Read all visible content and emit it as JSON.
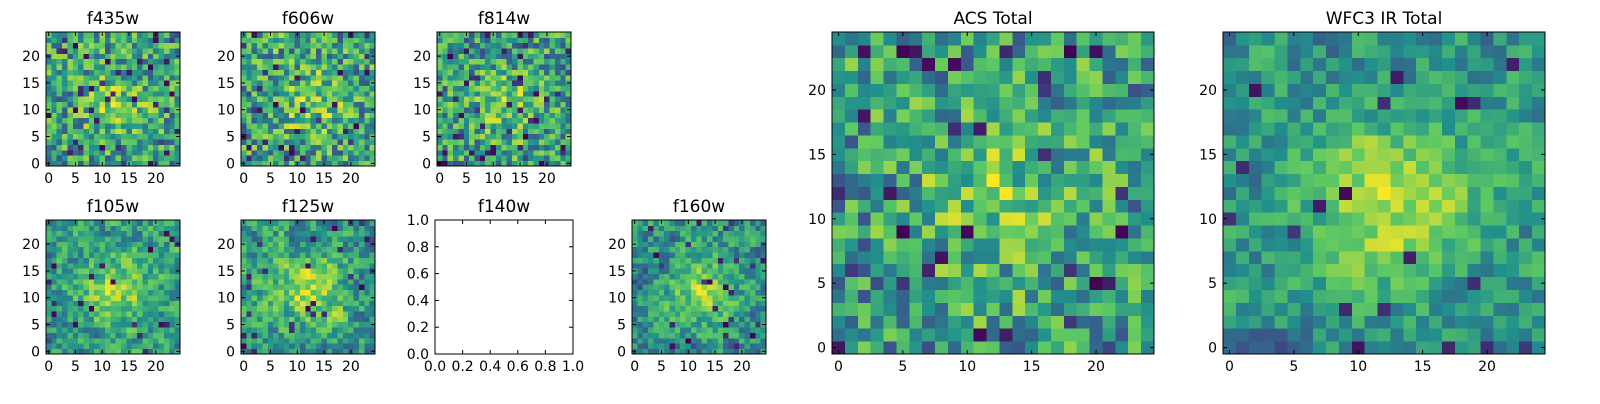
{
  "figure": {
    "background": "#ffffff"
  },
  "colormap": [
    "#440154",
    "#3b528b",
    "#21918c",
    "#5ec962",
    "#fde725"
  ],
  "chart_data": [
    {
      "id": "f435w",
      "type": "heatmap",
      "title": "f435w",
      "grid_size": 25,
      "xticks": [
        0,
        5,
        10,
        15,
        20
      ],
      "yticks": [
        0,
        5,
        10,
        15,
        20
      ],
      "xlim": [
        -0.5,
        24.5
      ],
      "ylim": [
        -0.5,
        24.5
      ],
      "seed": 11,
      "smooth": 0,
      "center_peak": 0.35,
      "dark_fraction": 0.06,
      "grid": false
    },
    {
      "id": "f606w",
      "type": "heatmap",
      "title": "f606w",
      "grid_size": 25,
      "xticks": [
        0,
        5,
        10,
        15,
        20
      ],
      "yticks": [
        0,
        5,
        10,
        15,
        20
      ],
      "xlim": [
        -0.5,
        24.5
      ],
      "ylim": [
        -0.5,
        24.5
      ],
      "seed": 23,
      "smooth": 0,
      "center_peak": 0.3,
      "dark_fraction": 0.05,
      "grid": false
    },
    {
      "id": "f814w",
      "type": "heatmap",
      "title": "f814w",
      "grid_size": 25,
      "xticks": [
        0,
        5,
        10,
        15,
        20
      ],
      "yticks": [
        0,
        5,
        10,
        15,
        20
      ],
      "xlim": [
        -0.5,
        24.5
      ],
      "ylim": [
        -0.5,
        24.5
      ],
      "seed": 37,
      "smooth": 0,
      "center_peak": 0.35,
      "dark_fraction": 0.07,
      "grid": false
    },
    {
      "id": "f105w",
      "type": "heatmap",
      "title": "f105w",
      "grid_size": 25,
      "xticks": [
        0,
        5,
        10,
        15,
        20
      ],
      "yticks": [
        0,
        5,
        10,
        15,
        20
      ],
      "xlim": [
        -0.5,
        24.5
      ],
      "ylim": [
        -0.5,
        24.5
      ],
      "seed": 41,
      "smooth": 1,
      "center_peak": 0.5,
      "dark_fraction": 0.03,
      "grid": false
    },
    {
      "id": "f125w",
      "type": "heatmap",
      "title": "f125w",
      "grid_size": 25,
      "xticks": [
        0,
        5,
        10,
        15,
        20
      ],
      "yticks": [
        0,
        5,
        10,
        15,
        20
      ],
      "xlim": [
        -0.5,
        24.5
      ],
      "ylim": [
        -0.5,
        24.5
      ],
      "seed": 53,
      "smooth": 1,
      "center_peak": 0.45,
      "dark_fraction": 0.04,
      "grid": false
    },
    {
      "id": "f140w",
      "type": "heatmap",
      "title": "f140w",
      "empty": true,
      "xticks": [
        0.0,
        0.2,
        0.4,
        0.6,
        0.8,
        1.0
      ],
      "yticks": [
        0.0,
        0.2,
        0.4,
        0.6,
        0.8,
        1.0
      ],
      "xtick_labels": [
        "0.0",
        "0.2",
        "0.4",
        "0.6",
        "0.8",
        "1.0"
      ],
      "ytick_labels": [
        "0.0",
        "0.2",
        "0.4",
        "0.6",
        "0.8",
        "1.0"
      ],
      "xlim": [
        0,
        1
      ],
      "ylim": [
        0,
        1
      ],
      "grid": false
    },
    {
      "id": "f160w",
      "type": "heatmap",
      "title": "f160w",
      "grid_size": 25,
      "xticks": [
        0,
        5,
        10,
        15,
        20
      ],
      "yticks": [
        0,
        5,
        10,
        15,
        20
      ],
      "xlim": [
        -0.5,
        24.5
      ],
      "ylim": [
        -0.5,
        24.5
      ],
      "seed": 67,
      "smooth": 1,
      "center_peak": 0.5,
      "dark_fraction": 0.04,
      "grid": false
    },
    {
      "id": "acs-total",
      "type": "heatmap",
      "title": "ACS Total",
      "grid_size": 25,
      "xticks": [
        0,
        5,
        10,
        15,
        20
      ],
      "yticks": [
        0,
        5,
        10,
        15,
        20
      ],
      "xlim": [
        -0.5,
        24.5
      ],
      "ylim": [
        -0.5,
        24.5
      ],
      "seed": 79,
      "smooth": 0,
      "center_peak": 0.35,
      "dark_fraction": 0.05,
      "grid": false
    },
    {
      "id": "wfc3-ir-total",
      "type": "heatmap",
      "title": "WFC3 IR Total",
      "grid_size": 25,
      "xticks": [
        0,
        5,
        10,
        15,
        20
      ],
      "yticks": [
        0,
        5,
        10,
        15,
        20
      ],
      "xlim": [
        -0.5,
        24.5
      ],
      "ylim": [
        -0.5,
        24.5
      ],
      "seed": 97,
      "smooth": 1,
      "center_peak": 0.7,
      "dark_fraction": 0.03,
      "grid": false
    }
  ]
}
